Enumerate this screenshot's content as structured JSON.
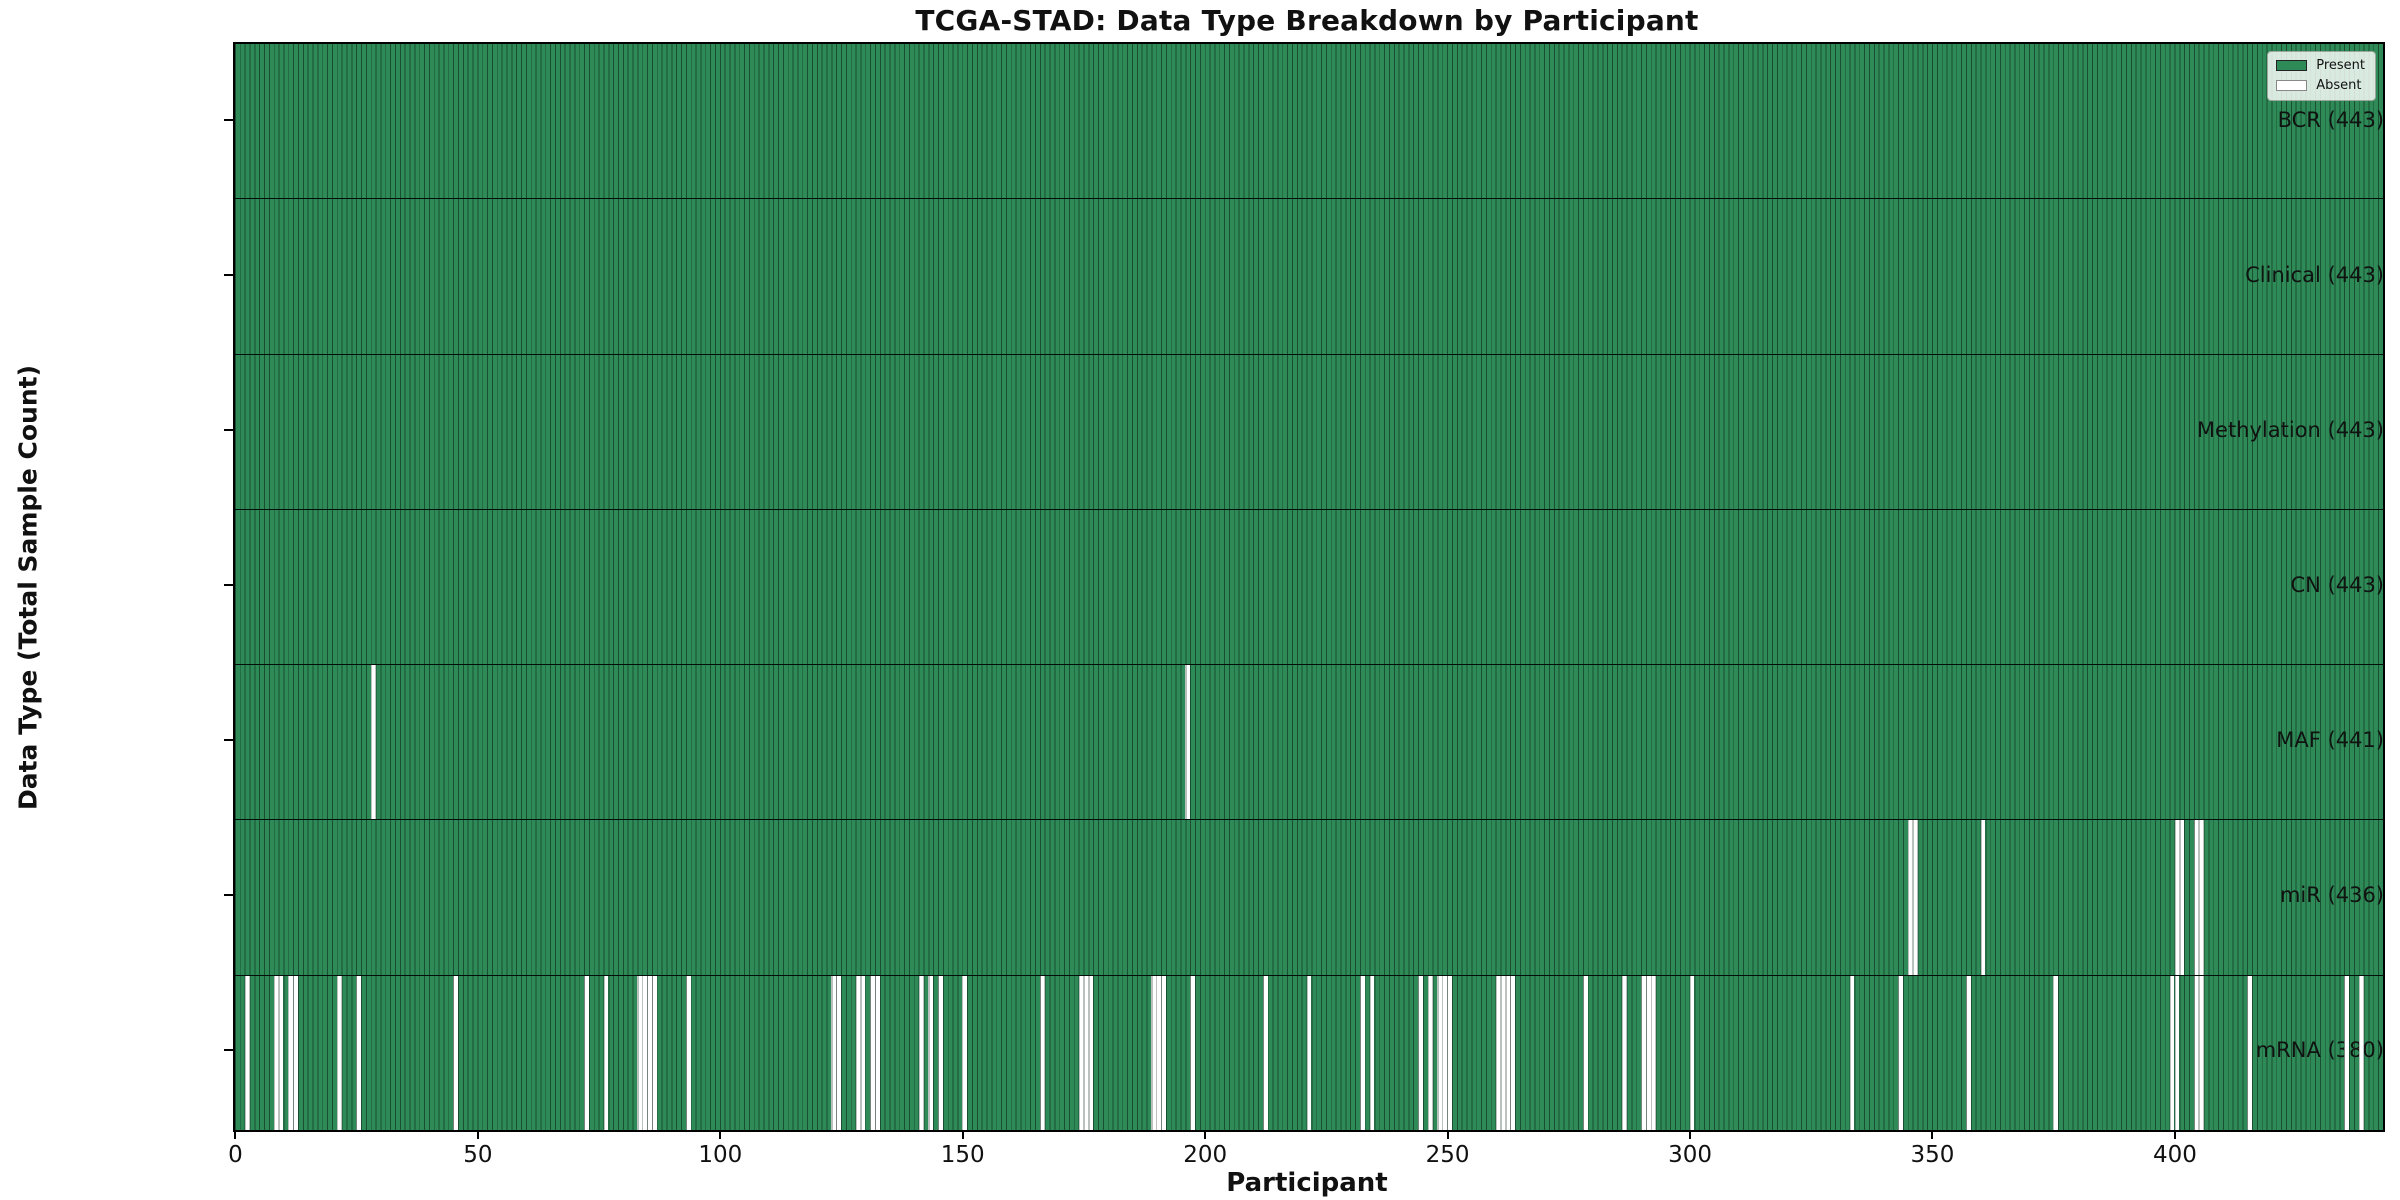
{
  "title": "TCGA-STAD: Data Type Breakdown by Participant",
  "xlabel": "Participant",
  "ylabel": "Data Type (Total Sample Count)",
  "legend": {
    "present_label": "Present",
    "absent_label": "Absent",
    "position": "upper right"
  },
  "colors": {
    "present": "#2e8b57",
    "absent": "#ffffff",
    "bar_edge": "#13301f",
    "legend_background": "#f2f5f2",
    "plot_border": "#000000"
  },
  "chart_data": {
    "type": "heatmap",
    "title": "TCGA-STAD: Data Type Breakdown by Participant",
    "xlabel": "Participant",
    "ylabel": "Data Type (Total Sample Count)",
    "n_participants": 443,
    "x_ticks": [
      0,
      50,
      100,
      150,
      200,
      250,
      300,
      350,
      400
    ],
    "xlim": [
      -0.5,
      442.5
    ],
    "grid": false,
    "legend_position": "upper right",
    "cell_states": {
      "present": 1,
      "absent": 0
    },
    "rows": [
      {
        "label": "BCR",
        "total": 443,
        "display": "BCR (443)",
        "absent": []
      },
      {
        "label": "Clinical",
        "total": 443,
        "display": "Clinical (443)",
        "absent": []
      },
      {
        "label": "Methylation",
        "total": 443,
        "display": "Methylation (443)",
        "absent": []
      },
      {
        "label": "CN",
        "total": 443,
        "display": "CN (443)",
        "absent": []
      },
      {
        "label": "MAF",
        "total": 441,
        "display": "MAF (441)",
        "absent": [
          28,
          196
        ]
      },
      {
        "label": "miR",
        "total": 436,
        "display": "miR (436)",
        "absent": [
          345,
          346,
          360,
          400,
          401,
          404,
          405
        ]
      },
      {
        "label": "mRNA",
        "total": 380,
        "display": "mRNA (380)",
        "absent": [
          2,
          8,
          9,
          11,
          12,
          21,
          25,
          45,
          72,
          76,
          83,
          84,
          85,
          86,
          93,
          123,
          124,
          128,
          129,
          131,
          132,
          141,
          143,
          145,
          150,
          166,
          174,
          175,
          176,
          189,
          190,
          191,
          197,
          212,
          221,
          232,
          234,
          244,
          246,
          248,
          249,
          250,
          260,
          261,
          262,
          263,
          278,
          286,
          290,
          291,
          292,
          300,
          333,
          343,
          357,
          375,
          399,
          400,
          404,
          405,
          415,
          435,
          438
        ]
      }
    ]
  }
}
